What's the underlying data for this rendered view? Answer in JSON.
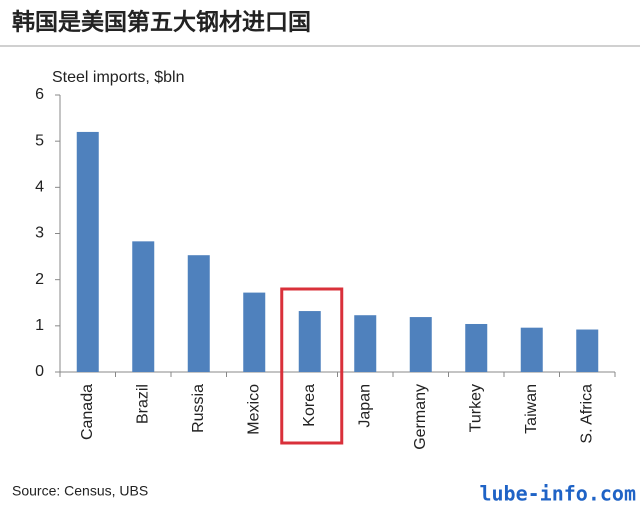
{
  "chart_data": {
    "type": "bar",
    "title": "韩国是美国第五大钢材进口国",
    "y_axis_label": "Steel imports, $bln",
    "categories": [
      "Canada",
      "Brazil",
      "Russia",
      "Mexico",
      "Korea",
      "Japan",
      "Germany",
      "Turkey",
      "Taiwan",
      "S. Africa"
    ],
    "values": [
      5.2,
      2.83,
      2.53,
      1.72,
      1.32,
      1.23,
      1.19,
      1.04,
      0.96,
      0.92
    ],
    "color": "#4f81bd",
    "ylim": [
      0,
      6
    ],
    "yticks": [
      0,
      1,
      2,
      3,
      4,
      5,
      6
    ],
    "grid": false,
    "highlight": {
      "index": 4,
      "color": "#d9303a"
    },
    "source": "Source:  Census, UBS",
    "watermark": "lube-info.com"
  }
}
